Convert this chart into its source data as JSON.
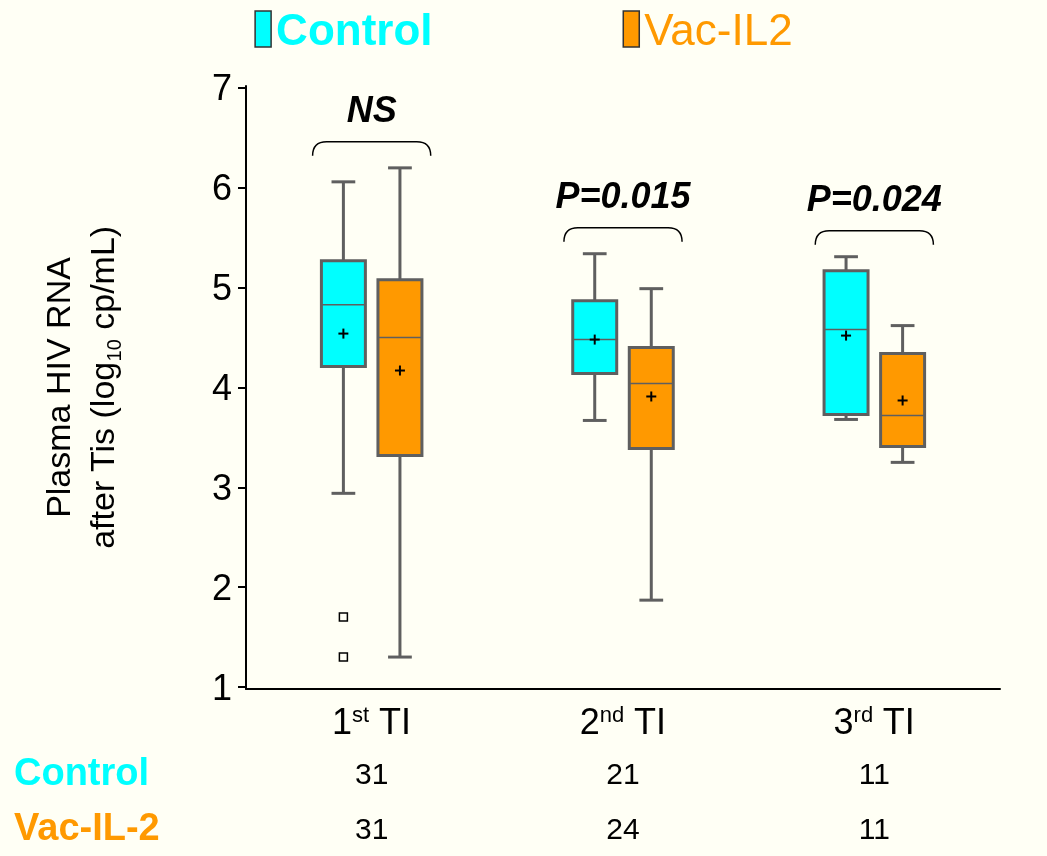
{
  "chart_data": {
    "type": "box",
    "ylabel": "Plasma HIV RNA\nafter Tis (log$_{10}$ cp/mL)",
    "categories": [
      "1$^{st}$ TI",
      "2$^{nd}$ TI",
      "3$^{rd}$ TI"
    ],
    "series": [
      {
        "name": "Control",
        "color": "#00ffff",
        "boxes": [
          {
            "low": 2.94,
            "q1": 4.21,
            "median": 4.83,
            "q3": 5.27,
            "high": 6.06,
            "mean": 4.54,
            "outliers": [
              1.7,
              1.3
            ]
          },
          {
            "low": 3.67,
            "q1": 4.14,
            "median": 4.48,
            "q3": 4.87,
            "high": 5.34,
            "mean": 4.48
          },
          {
            "low": 3.68,
            "q1": 3.73,
            "median": 4.58,
            "q3": 5.17,
            "high": 5.31,
            "mean": 4.52
          }
        ]
      },
      {
        "name": "Vac-IL2",
        "color": "#ff9900",
        "boxes": [
          {
            "low": 1.3,
            "q1": 3.32,
            "median": 4.5,
            "q3": 5.08,
            "high": 6.2,
            "mean": 4.17
          },
          {
            "low": 1.87,
            "q1": 3.39,
            "median": 4.04,
            "q3": 4.4,
            "high": 4.99,
            "mean": 3.91
          },
          {
            "low": 3.25,
            "q1": 3.41,
            "median": 3.72,
            "q3": 4.34,
            "high": 4.62,
            "mean": 3.87
          }
        ]
      }
    ],
    "ylim": [
      0.98,
      7.02
    ],
    "yticks": [
      1,
      2,
      3,
      4,
      5,
      6,
      7
    ],
    "legend": "top",
    "annotations": [
      "NS",
      "P=0.015",
      "P=0.024",
      "Control",
      "31",
      "21",
      "11",
      "Vac-IL-2",
      "31",
      "24",
      "11"
    ]
  }
}
